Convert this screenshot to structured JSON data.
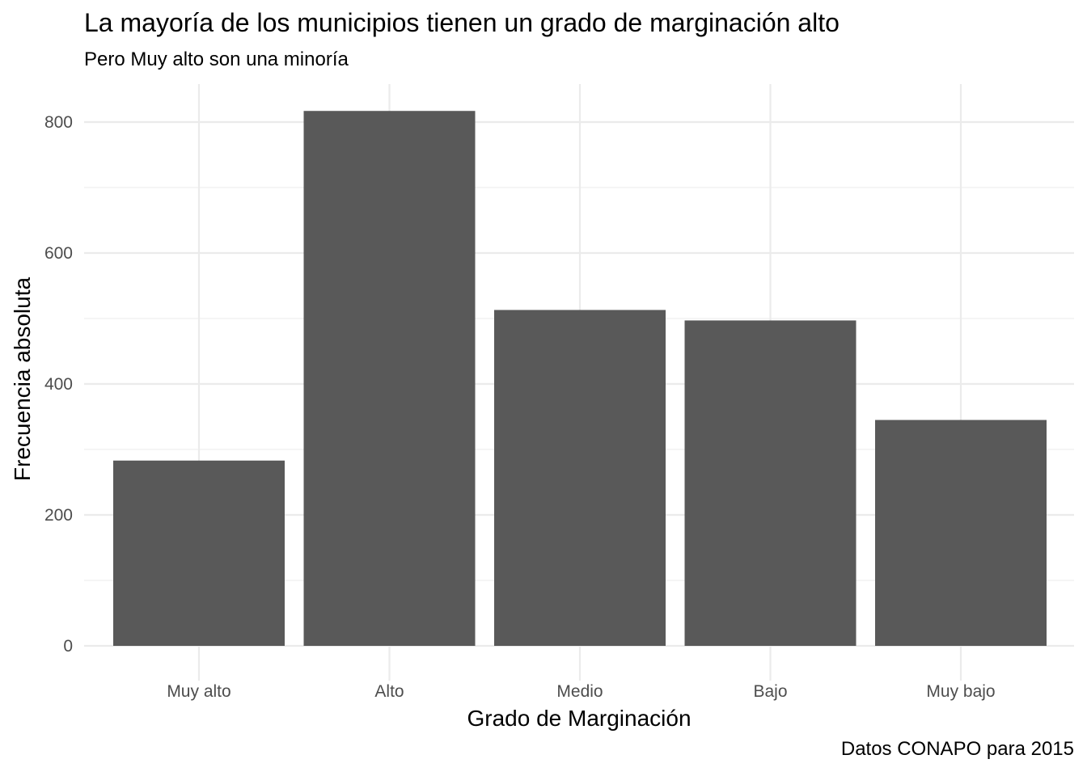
{
  "chart_data": {
    "type": "bar",
    "title": "La mayoría de los municipios tienen un grado de marginación alto",
    "subtitle": "Pero Muy alto son una minoría",
    "caption": "Datos CONAPO para 2015",
    "xlabel": "Grado de Marginación",
    "ylabel": "Frecuencia absoluta",
    "categories": [
      "Muy alto",
      "Alto",
      "Medio",
      "Bajo",
      "Muy bajo"
    ],
    "values": [
      283,
      817,
      513,
      497,
      345
    ],
    "ylim": [
      0,
      860
    ],
    "yticks": [
      0,
      200,
      400,
      600,
      800
    ],
    "grid": true,
    "bar_color": "#595959",
    "grid_color": "#ebebeb"
  }
}
